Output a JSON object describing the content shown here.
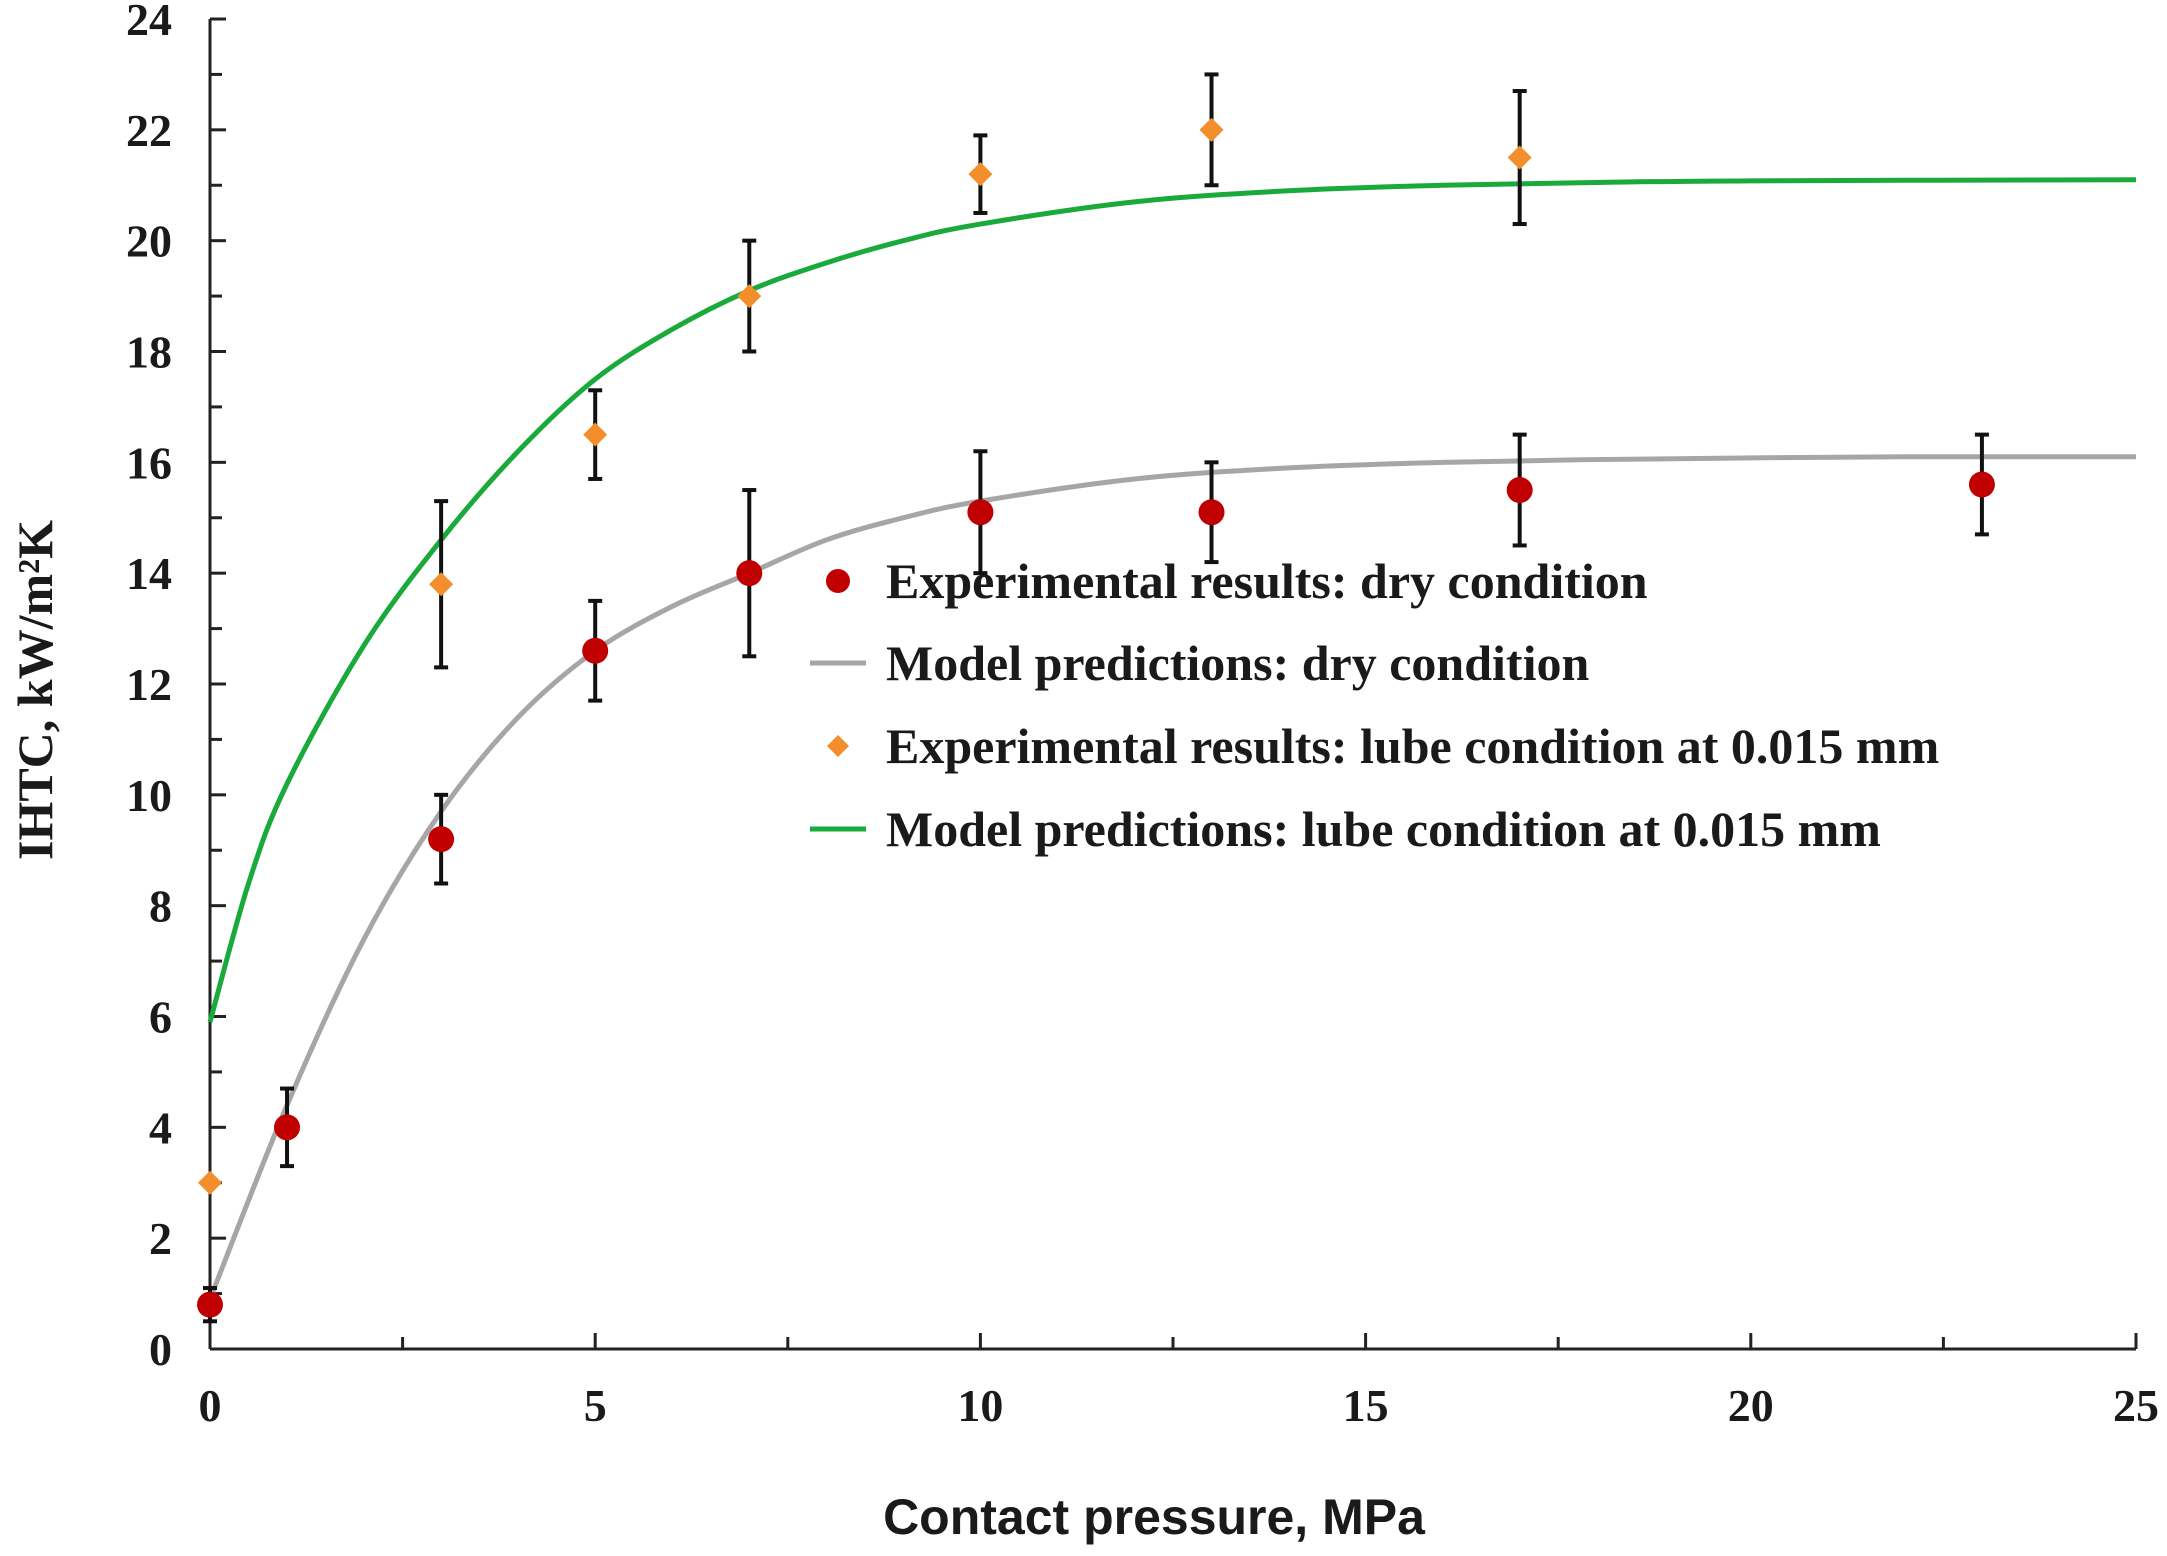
{
  "chart_data": {
    "type": "scatter",
    "xlabel": "Contact pressure, MPa",
    "ylabel": "IHTC, kW/m²K",
    "xlim": [
      0,
      25
    ],
    "ylim": [
      0,
      24
    ],
    "x_ticks": [
      0,
      5,
      10,
      15,
      20,
      25
    ],
    "y_ticks": [
      0,
      2,
      4,
      6,
      8,
      10,
      12,
      14,
      16,
      18,
      20,
      22,
      24
    ],
    "grid": false,
    "legend_position": "center-right",
    "series": [
      {
        "name": "Experimental results: dry condition",
        "kind": "scatter",
        "marker": "circle",
        "color": "#c00000",
        "x": [
          0,
          1,
          3,
          5,
          7,
          10,
          13,
          17,
          23
        ],
        "y": [
          0.8,
          4.0,
          9.2,
          12.6,
          14.0,
          15.1,
          15.1,
          15.5,
          15.6
        ],
        "error": [
          0.3,
          0.7,
          0.8,
          0.9,
          1.5,
          1.1,
          0.9,
          1.0,
          0.9
        ]
      },
      {
        "name": "Model predictions: dry condition",
        "kind": "line",
        "color": "#a6a6a6",
        "x": [
          0,
          1,
          2,
          3,
          4,
          5,
          6,
          7,
          8,
          9,
          10,
          12,
          14,
          16,
          18,
          20,
          22,
          25
        ],
        "y": [
          0.9,
          4.4,
          7.4,
          9.7,
          11.4,
          12.6,
          13.4,
          14.0,
          14.6,
          15.0,
          15.3,
          15.7,
          15.9,
          16.0,
          16.05,
          16.08,
          16.1,
          16.1
        ]
      },
      {
        "name": "Experimental results: lube condition at 0.015 mm",
        "kind": "scatter",
        "marker": "diamond",
        "color": "#f28e2b",
        "x": [
          0,
          3,
          5,
          7,
          10,
          13,
          17
        ],
        "y": [
          3.0,
          13.8,
          16.5,
          19.0,
          21.2,
          22.0,
          21.5
        ],
        "error": [
          0,
          1.5,
          0.8,
          1.0,
          0.7,
          1.0,
          1.2
        ]
      },
      {
        "name": "Model predictions: lube condition at 0.015 mm",
        "kind": "line",
        "color": "#1aaa3c",
        "x": [
          0,
          0.5,
          1,
          2,
          3,
          4,
          5,
          6,
          7,
          8,
          9,
          10,
          12,
          14,
          16,
          18,
          20,
          25
        ],
        "y": [
          5.9,
          8.4,
          10.2,
          12.7,
          14.6,
          16.2,
          17.5,
          18.4,
          19.1,
          19.6,
          20.0,
          20.3,
          20.7,
          20.9,
          21.0,
          21.05,
          21.08,
          21.1
        ]
      }
    ]
  }
}
